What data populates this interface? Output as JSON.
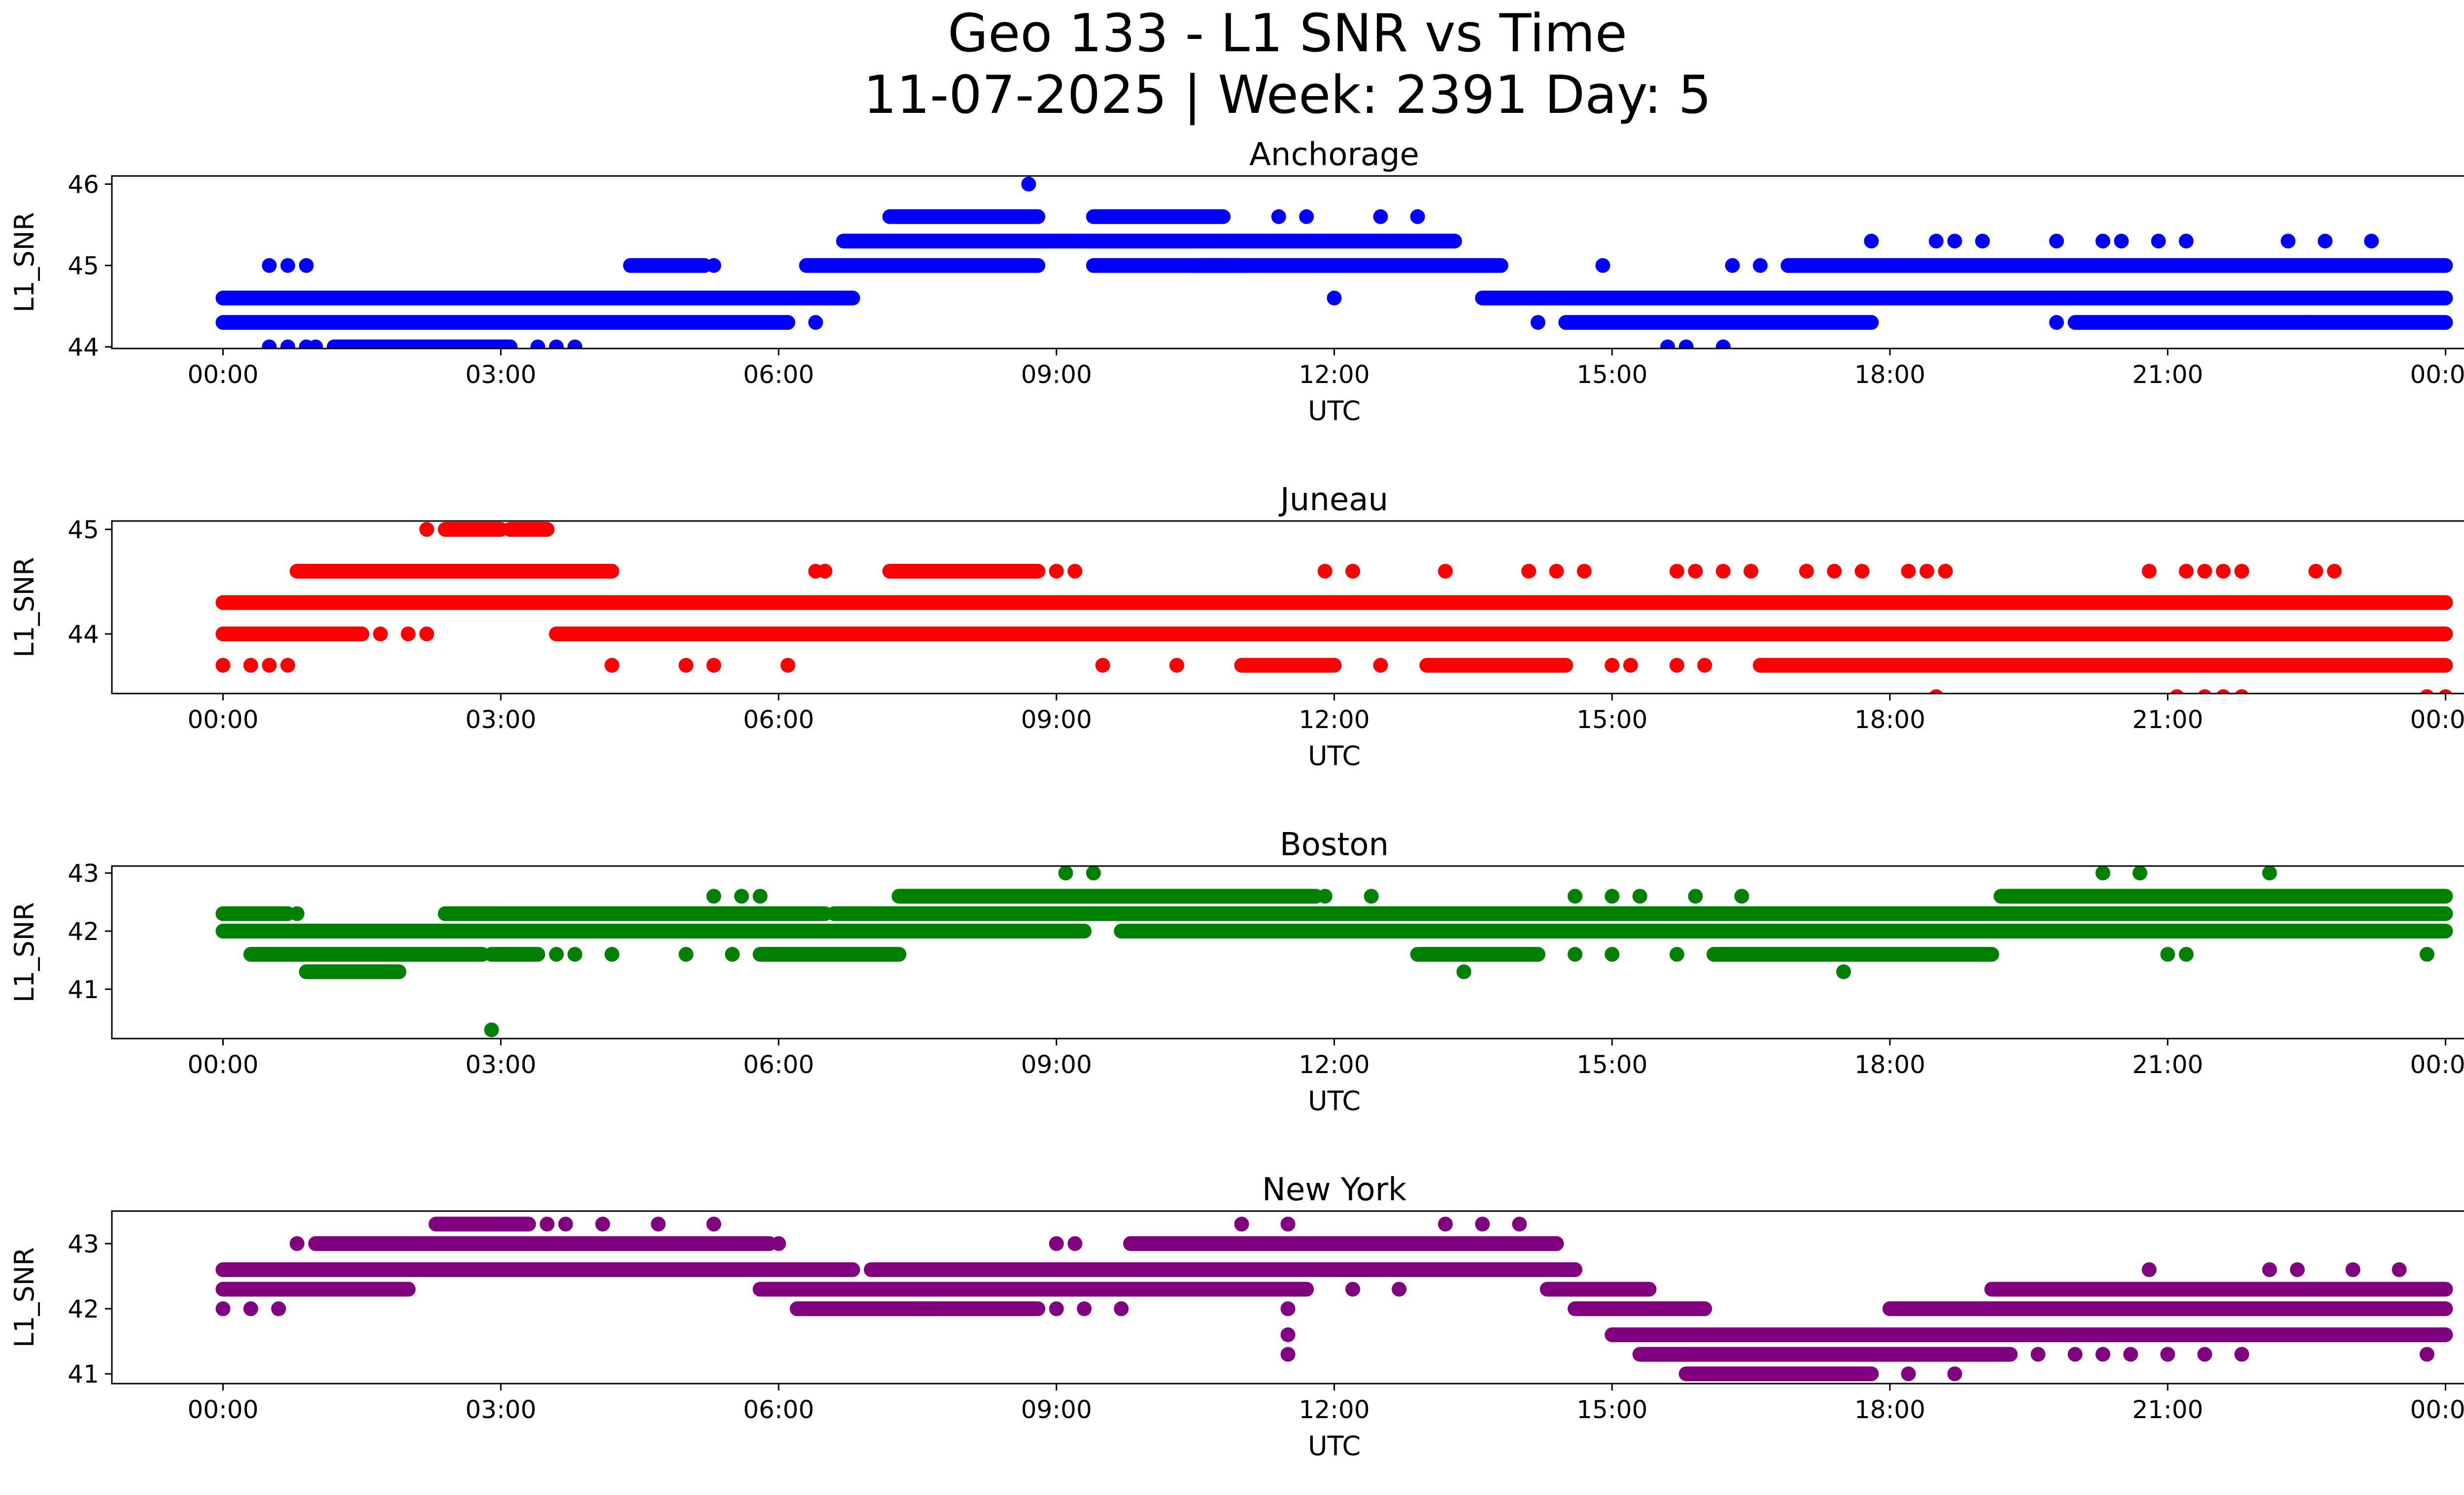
{
  "figure": {
    "title_line1": "Geo 133 - L1 SNR vs Time",
    "title_line2": "11-07-2025 | Week: 2391 Day: 5"
  },
  "chart_data": [
    {
      "type": "scatter",
      "title": "Anchorage",
      "xlabel": "UTC",
      "ylabel": "L1_SNR",
      "color": "#0000ff",
      "x_unit": "hours UTC",
      "xlim": [
        -1.2,
        25.2
      ],
      "x_ticks": [
        0,
        3,
        6,
        9,
        12,
        15,
        18,
        21,
        24
      ],
      "x_tick_labels": [
        "00:00",
        "03:00",
        "06:00",
        "09:00",
        "12:00",
        "15:00",
        "18:00",
        "21:00",
        "00:00"
      ],
      "ylim": [
        43.98,
        46.1
      ],
      "y_ticks": [
        44,
        45,
        46
      ],
      "y_tick_labels": [
        "44",
        "45",
        "46"
      ],
      "dense_runs": [
        {
          "y": 44.6,
          "x": [
            [
              0,
              6.8
            ],
            [
              13.6,
              24
            ]
          ]
        },
        {
          "y": 44.3,
          "x": [
            [
              0,
              6.1
            ],
            [
              14.5,
              17.8
            ],
            [
              20,
              24
            ]
          ]
        },
        {
          "y": 45.0,
          "x": [
            [
              6.3,
              8.8
            ],
            [
              9.4,
              11.0
            ],
            [
              10.5,
              13.8
            ],
            [
              16.9,
              24
            ]
          ]
        },
        {
          "y": 45.3,
          "x": [
            [
              6.7,
              13.3
            ]
          ]
        },
        {
          "y": 45.6,
          "x": [
            [
              7.2,
              8.8
            ],
            [
              9.4,
              10.8
            ]
          ]
        },
        {
          "y": 44.0,
          "x": [
            [
              1.2,
              3.1
            ]
          ]
        },
        {
          "y": 45.0,
          "x": [
            [
              4.4,
              5.2
            ]
          ]
        }
      ],
      "points": [
        [
          0.5,
          45
        ],
        [
          0.7,
          45
        ],
        [
          0.9,
          45
        ],
        [
          0.5,
          44
        ],
        [
          0.7,
          44
        ],
        [
          0.9,
          44
        ],
        [
          1.0,
          44
        ],
        [
          3.4,
          44
        ],
        [
          3.6,
          44
        ],
        [
          3.8,
          44
        ],
        [
          5.3,
          45
        ],
        [
          6.4,
          44.3
        ],
        [
          8.7,
          46
        ],
        [
          8.3,
          45.6
        ],
        [
          9.7,
          45.6
        ],
        [
          10.3,
          45.6
        ],
        [
          11.4,
          45.6
        ],
        [
          11.7,
          45.6
        ],
        [
          12.0,
          44.6
        ],
        [
          12.5,
          45.6
        ],
        [
          12.9,
          45.6
        ],
        [
          14.2,
          44.3
        ],
        [
          14.9,
          45
        ],
        [
          15.6,
          44
        ],
        [
          15.8,
          44
        ],
        [
          16.2,
          44
        ],
        [
          16.3,
          45
        ],
        [
          16.6,
          45
        ],
        [
          17.8,
          45.3
        ],
        [
          18.5,
          45.3
        ],
        [
          18.7,
          45.3
        ],
        [
          19.0,
          45.3
        ],
        [
          19.8,
          45.3
        ],
        [
          19.8,
          44.3
        ],
        [
          20.3,
          45.3
        ],
        [
          20.5,
          45.3
        ],
        [
          20.9,
          45.3
        ],
        [
          21.2,
          45.3
        ],
        [
          22.3,
          45.3
        ],
        [
          22.5,
          44.3
        ],
        [
          22.7,
          45.3
        ],
        [
          23.2,
          45.3
        ]
      ]
    },
    {
      "type": "scatter",
      "title": "Juneau",
      "xlabel": "UTC",
      "ylabel": "L1_SNR",
      "color": "#ff0000",
      "x_unit": "hours UTC",
      "xlim": [
        -1.2,
        25.2
      ],
      "x_ticks": [
        0,
        3,
        6,
        9,
        12,
        15,
        18,
        21,
        24
      ],
      "x_tick_labels": [
        "00:00",
        "03:00",
        "06:00",
        "09:00",
        "12:00",
        "15:00",
        "18:00",
        "21:00",
        "00:00"
      ],
      "ylim": [
        43.43,
        45.08
      ],
      "y_ticks": [
        44,
        45
      ],
      "y_tick_labels": [
        "44",
        "45"
      ],
      "dense_runs": [
        {
          "y": 44.3,
          "x": [
            [
              0,
              24
            ]
          ]
        },
        {
          "y": 44.0,
          "x": [
            [
              0,
              1.5
            ],
            [
              3.6,
              24
            ]
          ]
        },
        {
          "y": 44.6,
          "x": [
            [
              0.8,
              4.2
            ],
            [
              7.2,
              8.8
            ]
          ]
        },
        {
          "y": 43.7,
          "x": [
            [
              11.0,
              12.0
            ],
            [
              13.0,
              14.5
            ],
            [
              16.6,
              24
            ]
          ]
        },
        {
          "y": 45.0,
          "x": [
            [
              2.4,
              3.0
            ],
            [
              3.1,
              3.5
            ]
          ]
        }
      ],
      "points": [
        [
          0,
          43.7
        ],
        [
          0.3,
          43.7
        ],
        [
          0.5,
          43.7
        ],
        [
          0.7,
          43.7
        ],
        [
          1.7,
          44
        ],
        [
          2.0,
          44
        ],
        [
          2.2,
          44
        ],
        [
          2.2,
          45
        ],
        [
          4.2,
          43.7
        ],
        [
          5.0,
          43.7
        ],
        [
          5.3,
          43.7
        ],
        [
          6.1,
          43.7
        ],
        [
          6.4,
          44.6
        ],
        [
          6.5,
          44.6
        ],
        [
          9.0,
          44.6
        ],
        [
          9.2,
          44.6
        ],
        [
          9.5,
          43.7
        ],
        [
          10.3,
          43.7
        ],
        [
          11.9,
          44.6
        ],
        [
          12.2,
          44.6
        ],
        [
          12.5,
          43.7
        ],
        [
          13.2,
          44.6
        ],
        [
          14.1,
          44.6
        ],
        [
          14.4,
          44.6
        ],
        [
          14.7,
          44.6
        ],
        [
          15.0,
          43.7
        ],
        [
          15.2,
          43.7
        ],
        [
          15.7,
          44.6
        ],
        [
          15.9,
          44.6
        ],
        [
          16.2,
          44.6
        ],
        [
          16.5,
          44.6
        ],
        [
          15.7,
          43.7
        ],
        [
          16.0,
          43.7
        ],
        [
          17.1,
          44.6
        ],
        [
          17.4,
          44.6
        ],
        [
          17.7,
          44.6
        ],
        [
          18.2,
          44.6
        ],
        [
          18.4,
          44.6
        ],
        [
          18.6,
          44.6
        ],
        [
          18.5,
          43.4
        ],
        [
          20.8,
          44.6
        ],
        [
          21.2,
          44.6
        ],
        [
          21.4,
          44.6
        ],
        [
          21.6,
          44.6
        ],
        [
          21.8,
          44.6
        ],
        [
          21.1,
          43.4
        ],
        [
          21.4,
          43.4
        ],
        [
          21.6,
          43.4
        ],
        [
          21.8,
          43.4
        ],
        [
          22.6,
          44.6
        ],
        [
          22.8,
          44.6
        ],
        [
          23.8,
          43.4
        ],
        [
          24.0,
          43.4
        ],
        [
          24.0,
          44.3
        ]
      ]
    },
    {
      "type": "scatter",
      "title": "Boston",
      "xlabel": "UTC",
      "ylabel": "L1_SNR",
      "color": "#008000",
      "x_unit": "hours UTC",
      "xlim": [
        -1.2,
        25.2
      ],
      "x_ticks": [
        0,
        3,
        6,
        9,
        12,
        15,
        18,
        21,
        24
      ],
      "x_tick_labels": [
        "00:00",
        "03:00",
        "06:00",
        "09:00",
        "12:00",
        "15:00",
        "18:00",
        "21:00",
        "00:00"
      ],
      "ylim": [
        40.15,
        43.12
      ],
      "y_ticks": [
        41,
        42,
        43
      ],
      "y_tick_labels": [
        "41",
        "42",
        "43"
      ],
      "dense_runs": [
        {
          "y": 42.0,
          "x": [
            [
              0,
              9.3
            ],
            [
              9.7,
              24
            ]
          ]
        },
        {
          "y": 42.3,
          "x": [
            [
              0,
              0.7
            ],
            [
              2.4,
              6.5
            ],
            [
              6.6,
              24
            ]
          ]
        },
        {
          "y": 41.6,
          "x": [
            [
              0.3,
              2.8
            ],
            [
              2.9,
              3.4
            ],
            [
              5.8,
              7.3
            ],
            [
              12.9,
              14.2
            ],
            [
              16.1,
              19.1
            ]
          ]
        },
        {
          "y": 41.3,
          "x": [
            [
              0.9,
              1.9
            ]
          ]
        },
        {
          "y": 42.6,
          "x": [
            [
              7.3,
              11.8
            ],
            [
              19.2,
              24
            ]
          ]
        }
      ],
      "points": [
        [
          0.8,
          42.3
        ],
        [
          2.9,
          40.3
        ],
        [
          3.6,
          41.6
        ],
        [
          3.8,
          41.6
        ],
        [
          4.2,
          41.6
        ],
        [
          5.0,
          41.6
        ],
        [
          5.3,
          42.6
        ],
        [
          5.5,
          41.6
        ],
        [
          5.6,
          42.6
        ],
        [
          5.8,
          42.6
        ],
        [
          9.1,
          43
        ],
        [
          9.4,
          43
        ],
        [
          11.9,
          42.6
        ],
        [
          12.4,
          42.6
        ],
        [
          13.4,
          41.3
        ],
        [
          14.6,
          42.6
        ],
        [
          14.6,
          41.6
        ],
        [
          15.0,
          42.6
        ],
        [
          15.3,
          42.6
        ],
        [
          15.0,
          41.6
        ],
        [
          15.7,
          41.6
        ],
        [
          15.9,
          42.6
        ],
        [
          16.4,
          42.6
        ],
        [
          17.5,
          41.3
        ],
        [
          20.3,
          43
        ],
        [
          20.7,
          43
        ],
        [
          21.0,
          41.6
        ],
        [
          21.2,
          41.6
        ],
        [
          22.1,
          43
        ],
        [
          23.8,
          41.6
        ]
      ]
    },
    {
      "type": "scatter",
      "title": "New York",
      "xlabel": "UTC",
      "ylabel": "L1_SNR",
      "color": "#800080",
      "x_unit": "hours UTC",
      "xlim": [
        -1.2,
        25.2
      ],
      "x_ticks": [
        0,
        3,
        6,
        9,
        12,
        15,
        18,
        21,
        24
      ],
      "x_tick_labels": [
        "00:00",
        "03:00",
        "06:00",
        "09:00",
        "12:00",
        "15:00",
        "18:00",
        "21:00",
        "00:00"
      ],
      "ylim": [
        40.85,
        43.5
      ],
      "y_ticks": [
        41,
        42,
        43
      ],
      "y_tick_labels": [
        "41",
        "42",
        "43"
      ],
      "dense_runs": [
        {
          "y": 42.6,
          "x": [
            [
              0,
              6.8
            ],
            [
              7.0,
              14.6
            ]
          ]
        },
        {
          "y": 42.3,
          "x": [
            [
              0,
              2.0
            ],
            [
              5.8,
              11.7
            ],
            [
              14.3,
              15.4
            ]
          ]
        },
        {
          "y": 43.0,
          "x": [
            [
              1.0,
              5.9
            ],
            [
              9.8,
              14.4
            ]
          ]
        },
        {
          "y": 43.3,
          "x": [
            [
              2.3,
              3.3
            ]
          ]
        },
        {
          "y": 42.0,
          "x": [
            [
              6.2,
              7.7
            ],
            [
              7.5,
              8.8
            ],
            [
              14.6,
              16.0
            ],
            [
              18.0,
              24
            ]
          ]
        },
        {
          "y": 41.6,
          "x": [
            [
              15.0,
              24
            ]
          ]
        },
        {
          "y": 41.3,
          "x": [
            [
              15.3,
              19.3
            ]
          ]
        },
        {
          "y": 41.0,
          "x": [
            [
              15.8,
              17.8
            ]
          ]
        },
        {
          "y": 42.3,
          "x": [
            [
              19.1,
              24
            ]
          ]
        }
      ],
      "points": [
        [
          0,
          42
        ],
        [
          0.3,
          42
        ],
        [
          0.6,
          42
        ],
        [
          0.8,
          43
        ],
        [
          2.0,
          42.3
        ],
        [
          3.5,
          43.3
        ],
        [
          3.7,
          43.3
        ],
        [
          4.1,
          43.3
        ],
        [
          4.7,
          43.3
        ],
        [
          5.3,
          43.3
        ],
        [
          6.0,
          43
        ],
        [
          9.0,
          43
        ],
        [
          9.2,
          43
        ],
        [
          9.0,
          42
        ],
        [
          9.3,
          42
        ],
        [
          9.7,
          42
        ],
        [
          11.0,
          43.3
        ],
        [
          11.5,
          43.3
        ],
        [
          11.5,
          42
        ],
        [
          11.5,
          41.6
        ],
        [
          11.5,
          41.3
        ],
        [
          12.2,
          42.3
        ],
        [
          12.7,
          42.3
        ],
        [
          13.2,
          43.3
        ],
        [
          13.6,
          43.3
        ],
        [
          14.0,
          43.3
        ],
        [
          18.2,
          41
        ],
        [
          18.7,
          41
        ],
        [
          19.6,
          41.3
        ],
        [
          20.0,
          41.3
        ],
        [
          20.3,
          41.3
        ],
        [
          20.6,
          41.3
        ],
        [
          21.0,
          41.3
        ],
        [
          21.4,
          41.3
        ],
        [
          21.8,
          41.3
        ],
        [
          20.8,
          42.6
        ],
        [
          22.1,
          42.6
        ],
        [
          22.4,
          42.6
        ],
        [
          23.0,
          42.6
        ],
        [
          23.5,
          42.6
        ],
        [
          23.8,
          41.3
        ]
      ]
    }
  ]
}
